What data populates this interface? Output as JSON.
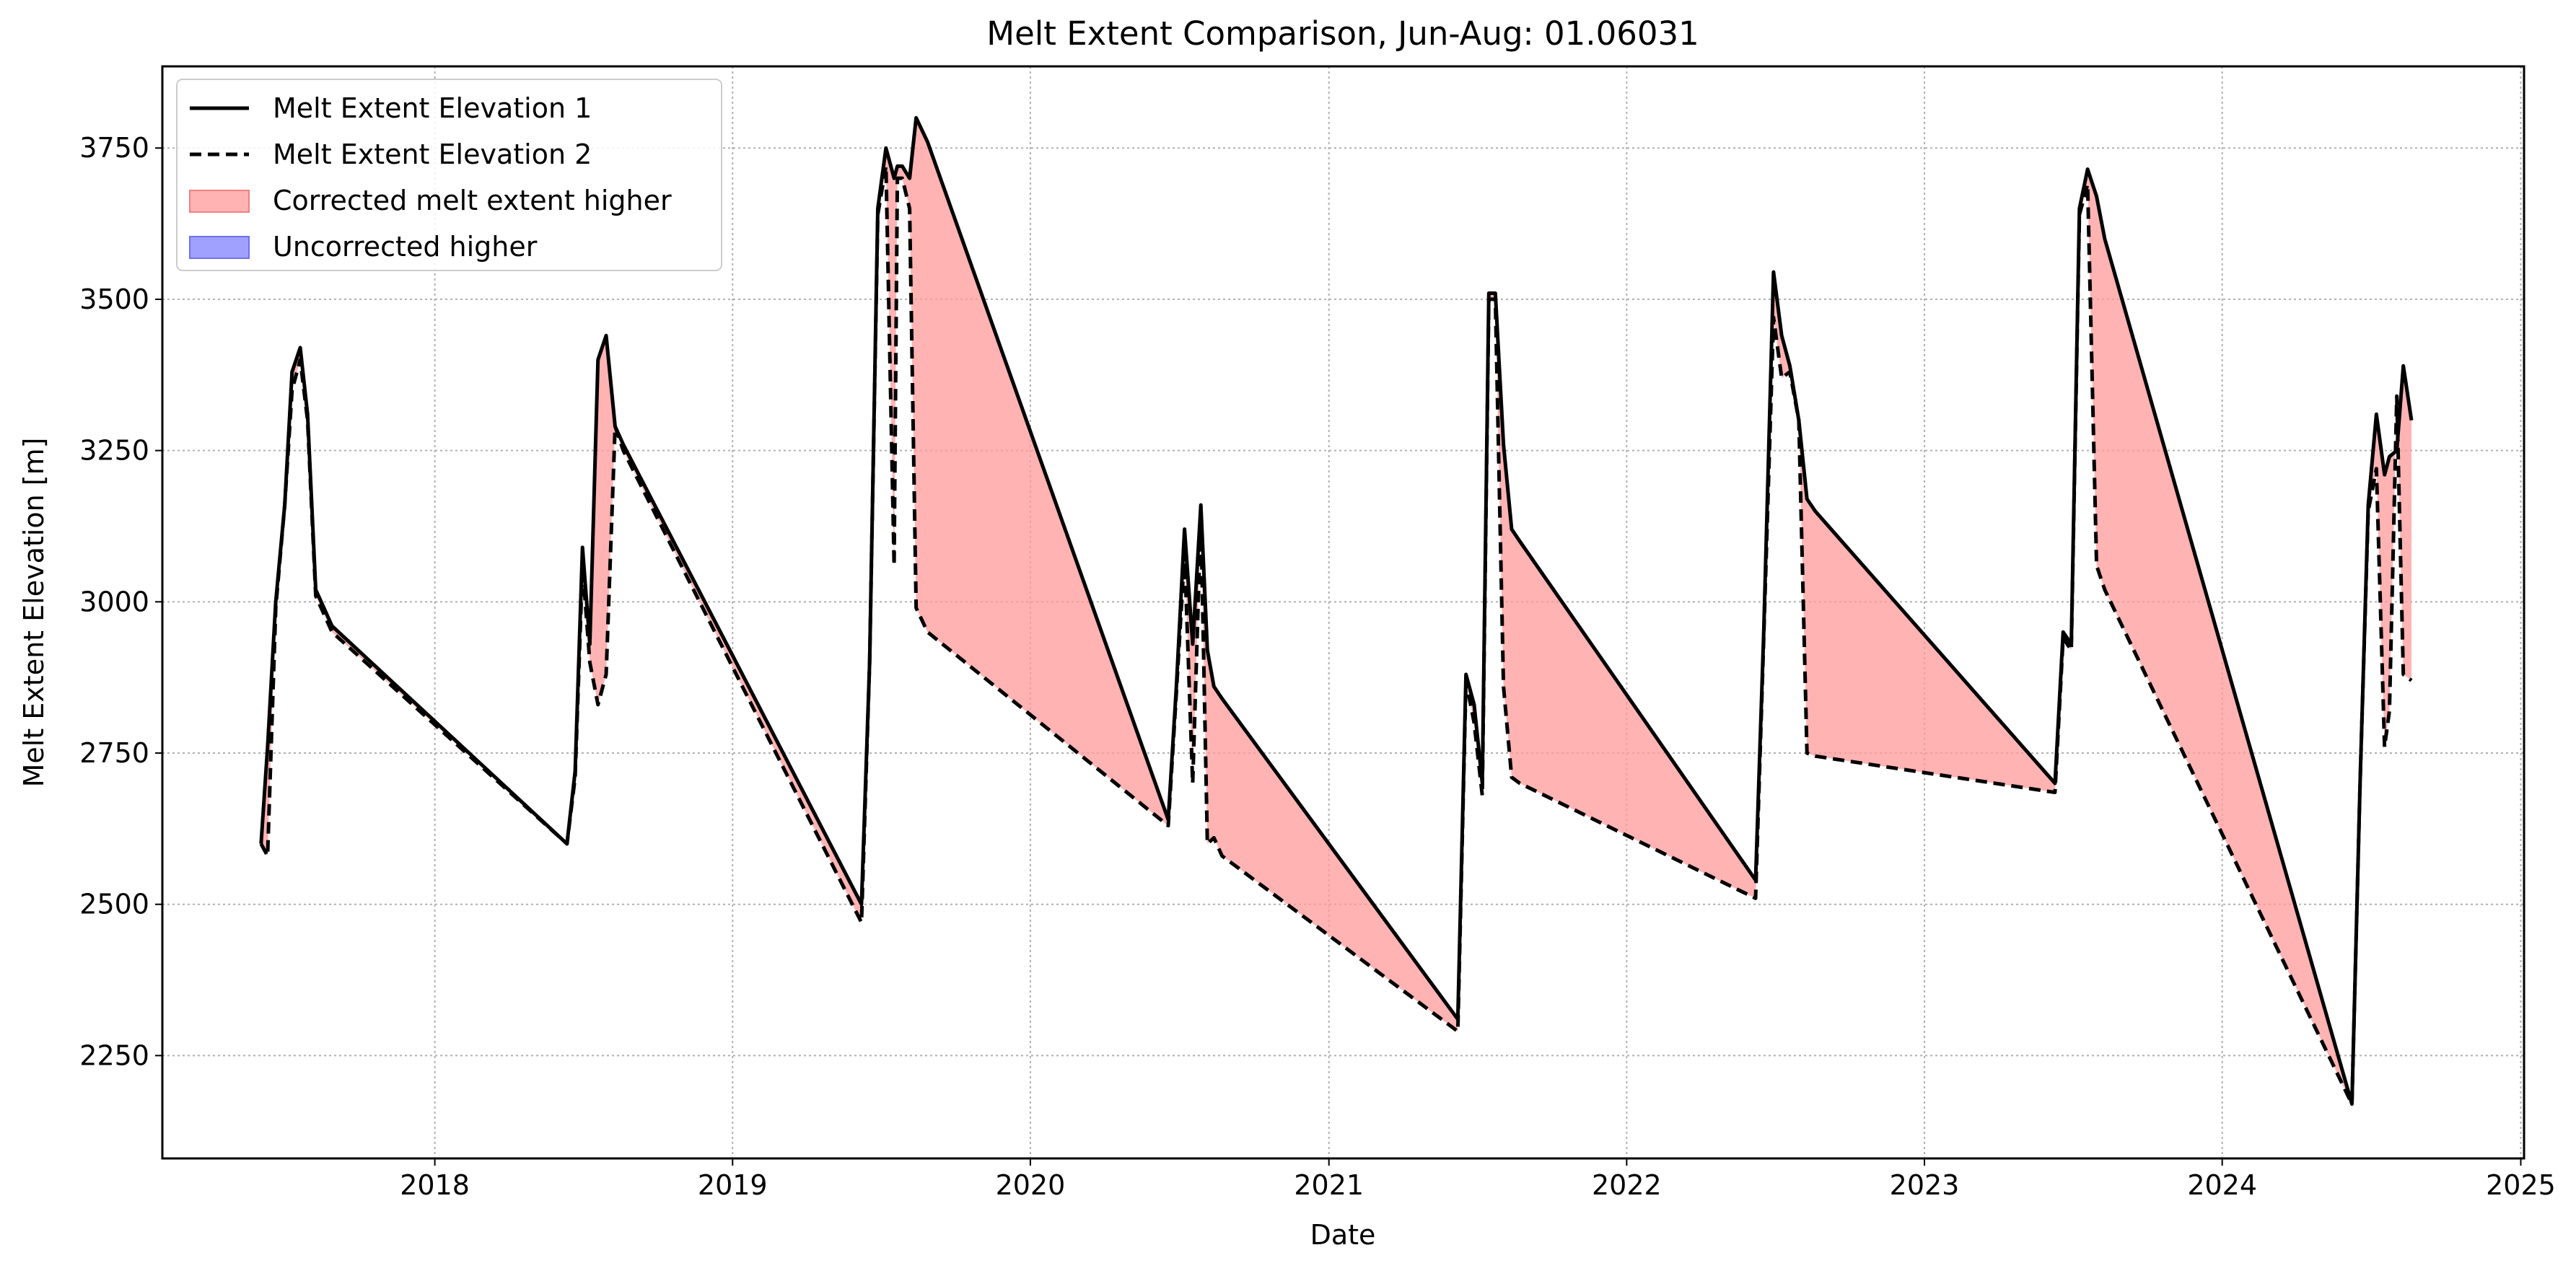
{
  "chart_data": {
    "type": "line",
    "title": "Melt Extent Comparison, Jun-Aug: 01.06031",
    "xlabel": "Date",
    "ylabel": "Melt Extent Elevation [m]",
    "x_ticks": [
      "2018",
      "2019",
      "2020",
      "2021",
      "2022",
      "2023",
      "2024",
      "2025"
    ],
    "y_ticks": [
      "2250",
      "2500",
      "2750",
      "3000",
      "3250",
      "3500",
      "3750"
    ],
    "xlim": [
      "2017-02-01",
      "2025-01-05"
    ],
    "ylim": [
      2080,
      3885
    ],
    "grid": true,
    "legend_position": "top-left",
    "legend": [
      {
        "label": "Melt Extent Elevation 1",
        "kind": "solid-line"
      },
      {
        "label": "Melt Extent Elevation 2",
        "kind": "dashed-line"
      },
      {
        "label": "Corrected melt extent higher",
        "kind": "fill-red"
      },
      {
        "label": "Uncorrected higher",
        "kind": "fill-blue"
      }
    ],
    "colors": {
      "line": "#000000",
      "fill_higher": "#ff9999",
      "fill_lower": "#8080ff",
      "grid": "#b0b0b0"
    },
    "series": [
      {
        "name": "Melt Extent Elevation 1",
        "style": "solid",
        "x": [
          "2017-06-02",
          "2017-06-10",
          "2017-06-20",
          "2017-07-01",
          "2017-07-10",
          "2017-07-20",
          "2017-07-29",
          "2017-08-08",
          "2017-08-18",
          "2017-08-28",
          "2018-06-12",
          "2018-06-22",
          "2018-07-01",
          "2018-07-10",
          "2018-07-20",
          "2018-07-30",
          "2018-08-10",
          "2018-08-20",
          "2019-06-08",
          "2019-06-18",
          "2019-06-28",
          "2019-07-08",
          "2019-07-18",
          "2019-07-22",
          "2019-07-28",
          "2019-08-06",
          "2019-08-14",
          "2019-08-28",
          "2020-06-18",
          "2020-06-28",
          "2020-07-08",
          "2020-07-18",
          "2020-07-28",
          "2020-08-05",
          "2020-08-13",
          "2020-08-23",
          "2021-06-08",
          "2021-06-18",
          "2021-06-28",
          "2021-07-08",
          "2021-07-16",
          "2021-07-24",
          "2021-08-03",
          "2021-08-13",
          "2021-08-23",
          "2022-06-08",
          "2022-06-18",
          "2022-06-30",
          "2022-07-10",
          "2022-07-20",
          "2022-07-31",
          "2022-08-10",
          "2022-08-20",
          "2023-06-10",
          "2023-06-20",
          "2023-06-30",
          "2023-07-10",
          "2023-07-20",
          "2023-07-31",
          "2023-08-10",
          "2024-06-08",
          "2024-06-18",
          "2024-06-28",
          "2024-07-08",
          "2024-07-18",
          "2024-07-24",
          "2024-08-02",
          "2024-08-10",
          "2024-08-20"
        ],
        "values": [
          2600,
          2760,
          3000,
          3160,
          3380,
          3420,
          3310,
          3020,
          2990,
          2960,
          2600,
          2720,
          3090,
          2930,
          3400,
          3440,
          3290,
          3260,
          2500,
          2900,
          3650,
          3750,
          3700,
          3720,
          3720,
          3700,
          3800,
          3760,
          2640,
          2860,
          3120,
          2930,
          3160,
          2920,
          2860,
          2840,
          2310,
          2880,
          2830,
          2700,
          3510,
          3510,
          3260,
          3120,
          3100,
          2540,
          2950,
          3545,
          3440,
          3390,
          3300,
          3170,
          3150,
          2700,
          2950,
          2930,
          3650,
          3715,
          3670,
          3600,
          2170,
          2700,
          3160,
          3310,
          3210,
          3240,
          3250,
          3390,
          3300
        ]
      },
      {
        "name": "Melt Extent Elevation 2",
        "style": "dashed",
        "x": [
          "2017-06-02",
          "2017-06-10",
          "2017-06-20",
          "2017-07-01",
          "2017-07-10",
          "2017-07-20",
          "2017-07-29",
          "2017-08-08",
          "2017-08-18",
          "2017-08-28",
          "2018-06-12",
          "2018-06-22",
          "2018-07-01",
          "2018-07-10",
          "2018-07-20",
          "2018-07-30",
          "2018-08-10",
          "2018-08-20",
          "2019-06-08",
          "2019-06-18",
          "2019-06-28",
          "2019-07-08",
          "2019-07-18",
          "2019-07-22",
          "2019-07-28",
          "2019-08-06",
          "2019-08-14",
          "2019-08-28",
          "2020-06-18",
          "2020-06-28",
          "2020-07-08",
          "2020-07-18",
          "2020-07-28",
          "2020-08-05",
          "2020-08-13",
          "2020-08-23",
          "2021-06-08",
          "2021-06-18",
          "2021-06-28",
          "2021-07-08",
          "2021-07-16",
          "2021-07-24",
          "2021-08-03",
          "2021-08-13",
          "2021-08-23",
          "2022-06-08",
          "2022-06-18",
          "2022-06-30",
          "2022-07-10",
          "2022-07-20",
          "2022-07-31",
          "2022-08-10",
          "2022-08-20",
          "2023-06-10",
          "2023-06-20",
          "2023-06-30",
          "2023-07-10",
          "2023-07-20",
          "2023-07-31",
          "2023-08-10",
          "2024-06-08",
          "2024-06-18",
          "2024-06-28",
          "2024-07-08",
          "2024-07-18",
          "2024-07-24",
          "2024-08-02",
          "2024-08-10",
          "2024-08-20"
        ],
        "values": [
          2600,
          2580,
          2990,
          3160,
          3350,
          3400,
          3300,
          3010,
          2980,
          2950,
          2600,
          2710,
          3060,
          2900,
          2830,
          2880,
          3290,
          3250,
          2470,
          2900,
          3640,
          3720,
          3060,
          3700,
          3700,
          3650,
          2990,
          2950,
          2630,
          2850,
          3080,
          2700,
          3140,
          2600,
          2610,
          2580,
          2290,
          2870,
          2800,
          2680,
          3500,
          3500,
          2860,
          2710,
          2700,
          2510,
          2940,
          3470,
          3370,
          3380,
          3300,
          2750,
          2745,
          2685,
          2940,
          2920,
          3640,
          3690,
          3060,
          3020,
          2170,
          2700,
          3150,
          3220,
          2760,
          2820,
          3340,
          2880,
          2870
        ]
      }
    ]
  }
}
